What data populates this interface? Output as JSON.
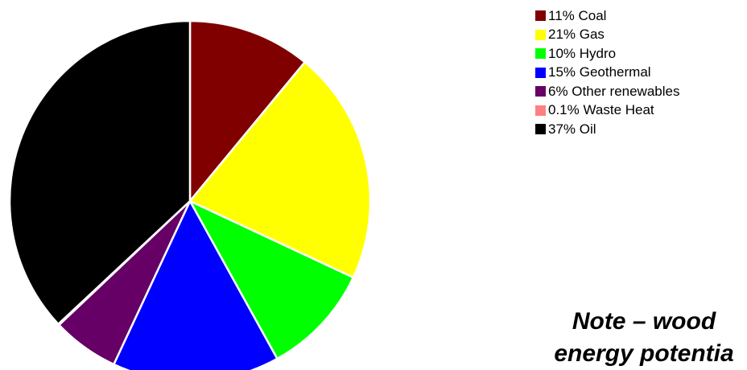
{
  "chart_data": {
    "type": "pie",
    "slices": [
      {
        "label": "11% Coal",
        "value": 11,
        "color": "#800000"
      },
      {
        "label": "21% Gas",
        "value": 21,
        "color": "#FFFF00"
      },
      {
        "label": "10% Hydro",
        "value": 10,
        "color": "#00FF00"
      },
      {
        "label": "15% Geothermal",
        "value": 15,
        "color": "#0000FF"
      },
      {
        "label": "6% Other renewables",
        "value": 6,
        "color": "#660066"
      },
      {
        "label": "0.1% Waste Heat",
        "value": 0.1,
        "color": "#FF8080"
      },
      {
        "label": "37% Oil",
        "value": 37,
        "color": "#000000"
      }
    ],
    "legend_position": "right"
  },
  "note": "Note – wood\nenergy potentia"
}
